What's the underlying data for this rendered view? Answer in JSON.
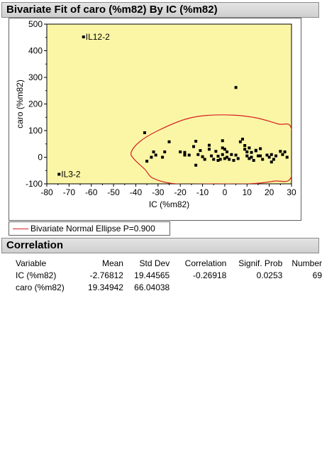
{
  "report": {
    "title": "Bivariate Fit of caro (%m82) By IC (%m82)",
    "correlation_title": "Correlation"
  },
  "legend": {
    "label": "Bivariate Normal Ellipse P=0.900",
    "color": "#d62020"
  },
  "colors": {
    "plot_background": "#fbf6a6",
    "ellipse": "#d62020",
    "points": "#000000"
  },
  "correlation_table": {
    "headers": [
      "Variable",
      "Mean",
      "Std Dev",
      "Correlation",
      "Signif. Prob",
      "Number"
    ],
    "rows": [
      [
        "IC (%m82)",
        "-2.76812",
        "19.44565",
        "-0.26918",
        "0.0253",
        "69"
      ],
      [
        "caro (%m82)",
        "19.34942",
        "66.04038",
        "",
        "",
        ""
      ]
    ]
  },
  "chart_data": {
    "type": "scatter",
    "xlabel": "IC (%m82)",
    "ylabel": "caro (%m82)",
    "xlim": [
      -80,
      30
    ],
    "ylim": [
      -100,
      500
    ],
    "xticks": [
      -80,
      -70,
      -60,
      -50,
      -40,
      -30,
      -20,
      -10,
      0,
      10,
      20,
      30
    ],
    "yticks": [
      -100,
      0,
      100,
      200,
      300,
      400,
      500
    ],
    "grid": false,
    "legend_placement": "below",
    "ellipse": {
      "p": 0.9,
      "points": [
        [
          -36,
          -45
        ],
        [
          -41,
          -5
        ],
        [
          -42,
          20
        ],
        [
          -38,
          60
        ],
        [
          -30,
          100
        ],
        [
          -18,
          142
        ],
        [
          -8,
          157
        ],
        [
          4,
          158
        ],
        [
          14,
          148
        ],
        [
          24,
          125
        ],
        [
          30,
          106
        ],
        [
          30,
          -72
        ],
        [
          22,
          -90
        ],
        [
          11,
          -100
        ],
        [
          -4,
          -100
        ],
        [
          -22,
          -100
        ],
        [
          -32,
          -80
        ],
        [
          -36,
          -45
        ]
      ]
    },
    "labeled_points": [
      {
        "label": "IL12-2",
        "x": -63.5,
        "y": 452
      },
      {
        "label": "IL3-2",
        "x": -74.5,
        "y": -64
      }
    ],
    "points": [
      [
        -63.5,
        452
      ],
      [
        -74.5,
        -64
      ],
      [
        5,
        262
      ],
      [
        -36,
        92
      ],
      [
        -25,
        58
      ],
      [
        -35,
        -15
      ],
      [
        -33,
        0
      ],
      [
        -32,
        20
      ],
      [
        -31,
        8
      ],
      [
        -28,
        0
      ],
      [
        -27,
        20
      ],
      [
        -20,
        20
      ],
      [
        -18,
        8
      ],
      [
        -16,
        8
      ],
      [
        -14,
        40
      ],
      [
        -13,
        60
      ],
      [
        -13,
        -30
      ],
      [
        -12,
        10
      ],
      [
        -11,
        25
      ],
      [
        -10,
        2
      ],
      [
        -9,
        -8
      ],
      [
        -7,
        45
      ],
      [
        -7,
        30
      ],
      [
        -6,
        5
      ],
      [
        -5,
        -8
      ],
      [
        -4,
        22
      ],
      [
        -3,
        -12
      ],
      [
        -2,
        -8
      ],
      [
        -1,
        62
      ],
      [
        -1,
        35
      ],
      [
        -1,
        10
      ],
      [
        0,
        -5
      ],
      [
        0,
        30
      ],
      [
        1,
        20
      ],
      [
        1,
        0
      ],
      [
        2,
        -8
      ],
      [
        4,
        -12
      ],
      [
        5,
        8
      ],
      [
        6,
        -5
      ],
      [
        7,
        58
      ],
      [
        8,
        68
      ],
      [
        9,
        30
      ],
      [
        10,
        20
      ],
      [
        10,
        5
      ],
      [
        11,
        -5
      ],
      [
        11,
        35
      ],
      [
        12,
        18
      ],
      [
        12,
        0
      ],
      [
        13,
        -12
      ],
      [
        14,
        24
      ],
      [
        15,
        5
      ],
      [
        16,
        5
      ],
      [
        16,
        32
      ],
      [
        17,
        -8
      ],
      [
        19,
        8
      ],
      [
        20,
        0
      ],
      [
        21,
        10
      ],
      [
        21,
        -18
      ],
      [
        22,
        -8
      ],
      [
        23,
        5
      ],
      [
        25,
        22
      ],
      [
        26,
        10
      ],
      [
        27,
        20
      ],
      [
        28,
        0
      ],
      [
        14,
        26
      ],
      [
        9,
        44
      ],
      [
        -18,
        18
      ],
      [
        3,
        10
      ],
      [
        -3,
        4
      ]
    ]
  }
}
